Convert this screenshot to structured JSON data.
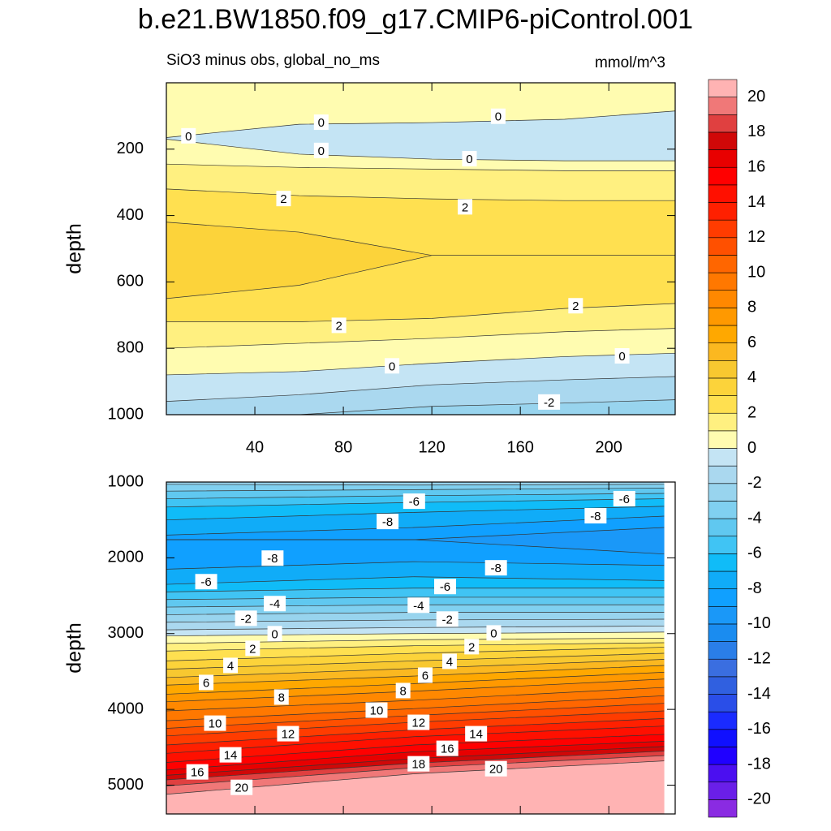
{
  "chart_data": {
    "type": "contour",
    "title": "b.e21.BW1850.f09_g17.CMIP6-piControl.001",
    "subtitle": "SiO3 minus obs, global_no_ms",
    "units": "mmol/m^3",
    "levels": [
      -20,
      -19,
      -18,
      -17,
      -16,
      -15,
      -14,
      -13,
      -12,
      -11,
      -10,
      -9,
      -8,
      -7,
      -6,
      -5,
      -4,
      -3,
      -2,
      -1,
      0,
      1,
      2,
      3,
      4,
      5,
      6,
      7,
      8,
      9,
      10,
      11,
      12,
      13,
      14,
      15,
      16,
      17,
      18,
      19,
      20
    ],
    "colors": [
      "#8a2be2",
      "#6a1fe8",
      "#4b0ff0",
      "#2000ff",
      "#1010ff",
      "#1a2bff",
      "#2a4ee8",
      "#3060e0",
      "#3a6ee0",
      "#2a7ee8",
      "#1a8cf0",
      "#1a98f8",
      "#10a0ff",
      "#10acf8",
      "#10bcf8",
      "#40c4f4",
      "#60c8f0",
      "#80d0f0",
      "#98d4ee",
      "#aad8ef",
      "#c4e4f4",
      "#fffcb0",
      "#fff080",
      "#ffe050",
      "#fcd33a",
      "#f8c830",
      "#fbb820",
      "#ffa800",
      "#ff9900",
      "#ff8800",
      "#ff7800",
      "#ff6600",
      "#ff5000",
      "#ff3c00",
      "#ff2000",
      "#ff1000",
      "#ff0000",
      "#e80000",
      "#d00808",
      "#e04040",
      "#f07878",
      "#ffb3b3"
    ],
    "colorbar_ticks": [
      -20,
      -18,
      -16,
      -14,
      -12,
      -10,
      -8,
      -6,
      -4,
      -2,
      0,
      2,
      4,
      6,
      8,
      10,
      12,
      14,
      16,
      18,
      20
    ],
    "panels": [
      {
        "ylabel": "depth",
        "y_reversed": true,
        "ylim": [
          0,
          1000
        ],
        "yticks": [
          200,
          400,
          600,
          800,
          1000
        ],
        "xlim": [
          0,
          230
        ],
        "xticks": [
          40,
          80,
          120,
          160,
          200
        ],
        "xtick_labels": true,
        "x": [
          0,
          60,
          120,
          180,
          230
        ],
        "contours": [
          {
            "level": 0,
            "depth": [
              165,
              125,
              120,
              110,
              85
            ]
          },
          {
            "level": 0,
            "depth": [
              170,
              215,
              230,
              235,
              235
            ]
          },
          {
            "level": 1,
            "depth": [
              245,
              255,
              260,
              265,
              265
            ]
          },
          {
            "level": 2,
            "depth": [
              320,
              340,
              350,
              355,
              355
            ]
          },
          {
            "level": 3,
            "depth": [
              420,
              450,
              520,
              520,
              520
            ]
          },
          {
            "level": 3,
            "depth": [
              650,
              610,
              520,
              520,
              520
            ]
          },
          {
            "level": 2,
            "depth": [
              720,
              720,
              710,
              680,
              665
            ]
          },
          {
            "level": 1,
            "depth": [
              800,
              785,
              770,
              750,
              740
            ]
          },
          {
            "level": 0,
            "depth": [
              880,
              870,
              845,
              825,
              815
            ]
          },
          {
            "level": -1,
            "depth": [
              960,
              940,
              910,
              895,
              885
            ]
          },
          {
            "level": -2,
            "depth": [
              1000,
              1000,
              975,
              965,
              955
            ]
          }
        ],
        "fill_values": [
          0.5,
          -0.5,
          0.5,
          1.5,
          2.5,
          3.5,
          2.5,
          1.5,
          0.5,
          -0.5,
          -1.5,
          -2.5
        ],
        "labels": [
          {
            "text": "0",
            "x": 10,
            "depth": 161
          },
          {
            "text": "0",
            "x": 70,
            "depth": 120
          },
          {
            "text": "0",
            "x": 150,
            "depth": 102
          },
          {
            "text": "0",
            "x": 70,
            "depth": 205
          },
          {
            "text": "0",
            "x": 137,
            "depth": 230
          },
          {
            "text": "2",
            "x": 53,
            "depth": 350
          },
          {
            "text": "2",
            "x": 135,
            "depth": 375
          },
          {
            "text": "2",
            "x": 185,
            "depth": 673
          },
          {
            "text": "2",
            "x": 78,
            "depth": 732
          },
          {
            "text": "0",
            "x": 102,
            "depth": 854
          },
          {
            "text": "0",
            "x": 206,
            "depth": 824
          },
          {
            "text": "-2",
            "x": 173,
            "depth": 963
          }
        ]
      },
      {
        "ylabel": "depth",
        "y_reversed": true,
        "ylim": [
          1000,
          5380
        ],
        "yticks": [
          1000,
          2000,
          3000,
          4000,
          5000
        ],
        "xlim": [
          0,
          230
        ],
        "xticks": [
          40,
          80,
          120,
          160,
          200
        ],
        "xtick_labels": false,
        "x": [
          0,
          112,
          225
        ],
        "contours": [
          {
            "level": -3,
            "depth": [
              1030,
              1040,
              1030
            ]
          },
          {
            "level": -4,
            "depth": [
              1120,
              1100,
              1080
            ]
          },
          {
            "level": -5,
            "depth": [
              1220,
              1180,
              1150
            ]
          },
          {
            "level": -6,
            "depth": [
              1330,
              1270,
              1220
            ]
          },
          {
            "level": -7,
            "depth": [
              1500,
              1400,
              1320
            ]
          },
          {
            "level": -8,
            "depth": [
              1700,
              1600,
              1450
            ]
          },
          {
            "level": -9,
            "depth": [
              1760,
              1760,
              1600
            ]
          },
          {
            "level": -9,
            "depth": [
              1760,
              1760,
              1950
            ]
          },
          {
            "level": -8,
            "depth": [
              2150,
              2050,
              2100
            ]
          },
          {
            "level": -7,
            "depth": [
              2350,
              2250,
              2300
            ]
          },
          {
            "level": -6,
            "depth": [
              2450,
              2400,
              2400
            ]
          },
          {
            "level": -5,
            "depth": [
              2550,
              2520,
              2520
            ]
          },
          {
            "level": -4,
            "depth": [
              2650,
              2620,
              2620
            ]
          },
          {
            "level": -3,
            "depth": [
              2750,
              2720,
              2720
            ]
          },
          {
            "level": -2,
            "depth": [
              2850,
              2820,
              2810
            ]
          },
          {
            "level": -1,
            "depth": [
              2950,
              2920,
              2900
            ]
          },
          {
            "level": 0,
            "depth": [
              3030,
              3000,
              2980
            ]
          },
          {
            "level": 1,
            "depth": [
              3130,
              3080,
              3060
            ]
          },
          {
            "level": 2,
            "depth": [
              3230,
              3160,
              3120
            ]
          },
          {
            "level": 3,
            "depth": [
              3360,
              3260,
              3180
            ]
          },
          {
            "level": 4,
            "depth": [
              3470,
              3360,
              3260
            ]
          },
          {
            "level": 5,
            "depth": [
              3580,
              3460,
              3340
            ]
          },
          {
            "level": 6,
            "depth": [
              3680,
              3560,
              3420
            ]
          },
          {
            "level": 7,
            "depth": [
              3800,
              3660,
              3510
            ]
          },
          {
            "level": 8,
            "depth": [
              3900,
              3760,
              3600
            ]
          },
          {
            "level": 9,
            "depth": [
              4020,
              3880,
              3710
            ]
          },
          {
            "level": 10,
            "depth": [
              4150,
              3990,
              3820
            ]
          },
          {
            "level": 11,
            "depth": [
              4250,
              4080,
              3920
            ]
          },
          {
            "level": 12,
            "depth": [
              4350,
              4170,
              4020
            ]
          },
          {
            "level": 13,
            "depth": [
              4470,
              4270,
              4120
            ]
          },
          {
            "level": 14,
            "depth": [
              4580,
              4360,
              4220
            ]
          },
          {
            "level": 15,
            "depth": [
              4700,
              4470,
              4330
            ]
          },
          {
            "level": 16,
            "depth": [
              4800,
              4560,
              4420
            ]
          },
          {
            "level": 17,
            "depth": [
              4870,
              4650,
              4490
            ]
          },
          {
            "level": 18,
            "depth": [
              4930,
              4710,
              4550
            ]
          },
          {
            "level": 19,
            "depth": [
              5010,
              4770,
              4610
            ]
          },
          {
            "level": 20,
            "depth": [
              5120,
              4850,
              4680
            ]
          }
        ],
        "fill_values": [
          -2.5,
          -3.5,
          -4.5,
          -5.5,
          -6.5,
          -7.5,
          -8.5,
          -9.5,
          -8.5,
          -7.5,
          -6.5,
          -5.5,
          -4.5,
          -3.5,
          -2.5,
          -1.5,
          -0.5,
          0.5,
          1.5,
          2.5,
          3.5,
          4.5,
          5.5,
          6.5,
          7.5,
          8.5,
          9.5,
          10.5,
          11.5,
          12.5,
          13.5,
          14.5,
          15.5,
          16.5,
          17.5,
          18.5,
          19.5,
          20.5
        ],
        "labels": [
          {
            "text": "-6",
            "x": 112,
            "depth": 1258
          },
          {
            "text": "-6",
            "x": 207,
            "depth": 1225
          },
          {
            "text": "-8",
            "x": 100,
            "depth": 1526
          },
          {
            "text": "-8",
            "x": 194,
            "depth": 1450
          },
          {
            "text": "-8",
            "x": 48,
            "depth": 2009
          },
          {
            "text": "-8",
            "x": 149,
            "depth": 2137
          },
          {
            "text": "-6",
            "x": 18,
            "depth": 2320
          },
          {
            "text": "-6",
            "x": 126,
            "depth": 2384
          },
          {
            "text": "-4",
            "x": 49,
            "depth": 2609
          },
          {
            "text": "-4",
            "x": 114,
            "depth": 2631
          },
          {
            "text": "-2",
            "x": 36,
            "depth": 2803
          },
          {
            "text": "-2",
            "x": 127,
            "depth": 2813
          },
          {
            "text": "0",
            "x": 49,
            "depth": 3006
          },
          {
            "text": "0",
            "x": 148,
            "depth": 2996
          },
          {
            "text": "2",
            "x": 39,
            "depth": 3200
          },
          {
            "text": "2",
            "x": 138,
            "depth": 3178
          },
          {
            "text": "4",
            "x": 29,
            "depth": 3425
          },
          {
            "text": "4",
            "x": 128,
            "depth": 3371
          },
          {
            "text": "6",
            "x": 18,
            "depth": 3650
          },
          {
            "text": "6",
            "x": 117,
            "depth": 3554
          },
          {
            "text": "8",
            "x": 52,
            "depth": 3843
          },
          {
            "text": "8",
            "x": 107,
            "depth": 3757
          },
          {
            "text": "10",
            "x": 22,
            "depth": 4187
          },
          {
            "text": "10",
            "x": 95,
            "depth": 4015
          },
          {
            "text": "12",
            "x": 55,
            "depth": 4326
          },
          {
            "text": "12",
            "x": 114,
            "depth": 4176
          },
          {
            "text": "14",
            "x": 29,
            "depth": 4605
          },
          {
            "text": "14",
            "x": 140,
            "depth": 4326
          },
          {
            "text": "16",
            "x": 14,
            "depth": 4830
          },
          {
            "text": "16",
            "x": 127,
            "depth": 4519
          },
          {
            "text": "18",
            "x": 114,
            "depth": 4723
          },
          {
            "text": "20",
            "x": 34,
            "depth": 5034
          },
          {
            "text": "20",
            "x": 149,
            "depth": 4788
          }
        ]
      }
    ]
  }
}
